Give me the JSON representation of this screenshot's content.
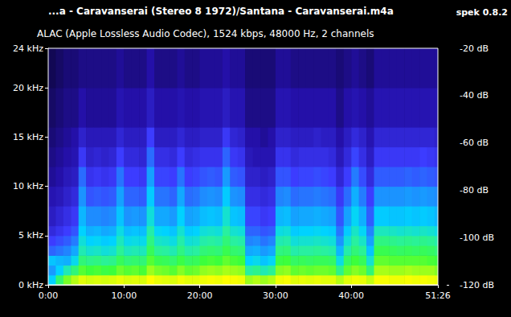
{
  "chart_data": {
    "type": "spectrogram",
    "title": "...a - Caravanserai (Stereo 8 1972)/Santana - Caravanserai.m4a",
    "annotation": "spek 0.8.2",
    "subtitle": "ALAC (Apple Lossless Audio Codec), 1524 kbps, 48000 Hz, 2 channels",
    "xlim": [
      0,
      3086
    ],
    "xticks": [
      {
        "value": 0,
        "label": "0:00"
      },
      {
        "value": 600,
        "label": "10:00"
      },
      {
        "value": 1200,
        "label": "20:00"
      },
      {
        "value": 1800,
        "label": "30:00"
      },
      {
        "value": 2400,
        "label": "40:00"
      },
      {
        "value": 3086,
        "label": "51:26"
      }
    ],
    "ylim": [
      0,
      24
    ],
    "yticks": [
      {
        "value": 0,
        "label": "0 kHz"
      },
      {
        "value": 5,
        "label": "5 kHz"
      },
      {
        "value": 10,
        "label": "10 kHz"
      },
      {
        "value": 15,
        "label": "15 kHz"
      },
      {
        "value": 20,
        "label": "20 kHz"
      },
      {
        "value": 24,
        "label": "24 kHz"
      }
    ],
    "time_bins": [
      0,
      60,
      120,
      180,
      240,
      300,
      360,
      420,
      480,
      540,
      600,
      660,
      720,
      780,
      840,
      900,
      960,
      1020,
      1080,
      1140,
      1200,
      1260,
      1320,
      1380,
      1440,
      1500,
      1560,
      1620,
      1680,
      1740,
      1800,
      1860,
      1920,
      1980,
      2040,
      2100,
      2160,
      2220,
      2280,
      2340,
      2400,
      2460,
      2520,
      2580,
      2640,
      2700,
      2760,
      2820,
      2880,
      2940,
      3000,
      3060,
      3086
    ],
    "freq_bins": [
      0,
      1,
      2,
      3,
      4,
      5,
      6,
      8,
      10,
      12,
      14,
      16,
      20,
      24
    ],
    "cells": [
      [
        -80,
        -88,
        -82,
        -95,
        -100,
        -104,
        -107,
        -109,
        -111,
        -112,
        -113,
        -114,
        -115
      ],
      [
        -65,
        -80,
        -84,
        -93,
        -98,
        -102,
        -105,
        -108,
        -110,
        -111,
        -112,
        -113,
        -114
      ],
      [
        -55,
        -72,
        -85,
        -91,
        -96,
        -100,
        -103,
        -106,
        -108,
        -110,
        -111,
        -112,
        -113
      ],
      [
        -50,
        -66,
        -78,
        -86,
        -92,
        -97,
        -101,
        -104,
        -107,
        -109,
        -110,
        -112,
        -113
      ],
      [
        -44,
        -58,
        -66,
        -72,
        -76,
        -80,
        -84,
        -89,
        -94,
        -101,
        -106,
        -110,
        -112
      ],
      [
        -46,
        -60,
        -68,
        -75,
        -80,
        -85,
        -90,
        -97,
        -102,
        -106,
        -108,
        -111,
        -112
      ],
      [
        -45,
        -59,
        -67,
        -74,
        -79,
        -84,
        -90,
        -96,
        -101,
        -105,
        -108,
        -111,
        -112
      ],
      [
        -46,
        -61,
        -69,
        -76,
        -81,
        -86,
        -91,
        -97,
        -102,
        -106,
        -108,
        -111,
        -112
      ],
      [
        -45,
        -60,
        -68,
        -75,
        -80,
        -85,
        -90,
        -96,
        -101,
        -105,
        -108,
        -111,
        -112
      ],
      [
        -43,
        -56,
        -63,
        -69,
        -73,
        -77,
        -82,
        -87,
        -93,
        -100,
        -105,
        -109,
        -111
      ],
      [
        -45,
        -58,
        -66,
        -73,
        -78,
        -83,
        -89,
        -95,
        -100,
        -104,
        -107,
        -110,
        -112
      ],
      [
        -44,
        -57,
        -65,
        -72,
        -77,
        -82,
        -88,
        -95,
        -100,
        -104,
        -107,
        -110,
        -112
      ],
      [
        -45,
        -59,
        -66,
        -73,
        -78,
        -83,
        -89,
        -96,
        -101,
        -105,
        -107,
        -110,
        -112
      ],
      [
        -40,
        -52,
        -58,
        -63,
        -67,
        -71,
        -76,
        -81,
        -87,
        -94,
        -100,
        -107,
        -110
      ],
      [
        -43,
        -55,
        -62,
        -69,
        -74,
        -79,
        -86,
        -93,
        -99,
        -103,
        -107,
        -110,
        -112
      ],
      [
        -44,
        -56,
        -63,
        -70,
        -75,
        -80,
        -86,
        -93,
        -99,
        -103,
        -107,
        -110,
        -112
      ],
      [
        -45,
        -58,
        -65,
        -72,
        -77,
        -82,
        -88,
        -95,
        -100,
        -104,
        -107,
        -110,
        -112
      ],
      [
        -42,
        -54,
        -61,
        -67,
        -71,
        -75,
        -80,
        -86,
        -93,
        -100,
        -105,
        -109,
        -111
      ],
      [
        -44,
        -57,
        -64,
        -71,
        -76,
        -81,
        -87,
        -94,
        -100,
        -104,
        -107,
        -110,
        -112
      ],
      [
        -44,
        -56,
        -63,
        -70,
        -75,
        -80,
        -86,
        -93,
        -99,
        -103,
        -107,
        -110,
        -112
      ],
      [
        -42,
        -53,
        -60,
        -66,
        -71,
        -76,
        -83,
        -90,
        -97,
        -102,
        -106,
        -109,
        -111
      ],
      [
        -41,
        -52,
        -59,
        -65,
        -70,
        -75,
        -82,
        -89,
        -96,
        -102,
        -106,
        -109,
        -111
      ],
      [
        -42,
        -53,
        -60,
        -66,
        -71,
        -76,
        -83,
        -90,
        -97,
        -102,
        -106,
        -109,
        -111
      ],
      [
        -40,
        -51,
        -57,
        -62,
        -66,
        -70,
        -75,
        -81,
        -88,
        -95,
        -101,
        -107,
        -110
      ],
      [
        -41,
        -52,
        -59,
        -65,
        -70,
        -75,
        -82,
        -89,
        -96,
        -101,
        -105,
        -109,
        -111
      ],
      [
        -42,
        -53,
        -60,
        -66,
        -71,
        -76,
        -83,
        -90,
        -97,
        -102,
        -106,
        -109,
        -111
      ],
      [
        -52,
        -70,
        -80,
        -86,
        -91,
        -95,
        -99,
        -103,
        -106,
        -108,
        -110,
        -112,
        -113
      ],
      [
        -50,
        -68,
        -78,
        -85,
        -90,
        -95,
        -99,
        -103,
        -106,
        -109,
        -110,
        -112,
        -113
      ],
      [
        -52,
        -72,
        -82,
        -88,
        -93,
        -97,
        -101,
        -104,
        -107,
        -109,
        -111,
        -112,
        -113
      ],
      [
        -50,
        -69,
        -79,
        -86,
        -91,
        -96,
        -100,
        -103,
        -106,
        -109,
        -110,
        -112,
        -113
      ],
      [
        -42,
        -54,
        -61,
        -67,
        -72,
        -77,
        -84,
        -91,
        -97,
        -102,
        -106,
        -109,
        -111
      ],
      [
        -41,
        -53,
        -60,
        -66,
        -71,
        -76,
        -83,
        -90,
        -97,
        -102,
        -106,
        -109,
        -111
      ],
      [
        -44,
        -57,
        -64,
        -71,
        -76,
        -81,
        -87,
        -94,
        -100,
        -104,
        -107,
        -110,
        -112
      ],
      [
        -43,
        -56,
        -63,
        -70,
        -75,
        -80,
        -86,
        -93,
        -99,
        -103,
        -107,
        -110,
        -112
      ],
      [
        -44,
        -57,
        -64,
        -70,
        -75,
        -80,
        -86,
        -93,
        -99,
        -103,
        -107,
        -110,
        -112
      ],
      [
        -43,
        -56,
        -63,
        -69,
        -74,
        -79,
        -85,
        -92,
        -98,
        -103,
        -106,
        -110,
        -112
      ],
      [
        -44,
        -56,
        -63,
        -70,
        -75,
        -80,
        -86,
        -93,
        -99,
        -103,
        -107,
        -110,
        -112
      ],
      [
        -44,
        -57,
        -64,
        -71,
        -76,
        -81,
        -87,
        -94,
        -100,
        -104,
        -107,
        -110,
        -112
      ],
      [
        -50,
        -68,
        -77,
        -84,
        -89,
        -93,
        -97,
        -101,
        -105,
        -108,
        -110,
        -112,
        -113
      ],
      [
        -44,
        -57,
        -64,
        -71,
        -76,
        -81,
        -87,
        -94,
        -100,
        -104,
        -107,
        -110,
        -112
      ],
      [
        -42,
        -54,
        -60,
        -66,
        -70,
        -74,
        -79,
        -85,
        -92,
        -99,
        -104,
        -109,
        -111
      ],
      [
        -43,
        -56,
        -63,
        -69,
        -74,
        -79,
        -85,
        -92,
        -98,
        -103,
        -106,
        -110,
        -112
      ],
      [
        -48,
        -66,
        -75,
        -82,
        -87,
        -91,
        -96,
        -100,
        -104,
        -107,
        -109,
        -111,
        -113
      ],
      [
        -41,
        -51,
        -57,
        -62,
        -67,
        -73,
        -81,
        -89,
        -96,
        -101,
        -105,
        -109,
        -111
      ],
      [
        -41,
        -51,
        -57,
        -62,
        -67,
        -73,
        -81,
        -89,
        -96,
        -101,
        -105,
        -109,
        -111
      ],
      [
        -42,
        -52,
        -58,
        -63,
        -68,
        -74,
        -82,
        -89,
        -96,
        -101,
        -105,
        -109,
        -111
      ],
      [
        -42,
        -52,
        -58,
        -64,
        -69,
        -75,
        -82,
        -89,
        -96,
        -101,
        -105,
        -109,
        -111
      ],
      [
        -41,
        -51,
        -58,
        -63,
        -68,
        -74,
        -81,
        -88,
        -95,
        -101,
        -105,
        -109,
        -111
      ],
      [
        -42,
        -52,
        -58,
        -64,
        -69,
        -75,
        -82,
        -89,
        -96,
        -101,
        -105,
        -109,
        -111
      ],
      [
        -41,
        -52,
        -58,
        -63,
        -68,
        -74,
        -81,
        -88,
        -95,
        -100,
        -105,
        -109,
        -111
      ],
      [
        -42,
        -52,
        -59,
        -64,
        -69,
        -75,
        -82,
        -89,
        -96,
        -101,
        -105,
        -109,
        -111
      ],
      [
        -43,
        -54,
        -60,
        -66,
        -71,
        -77,
        -84,
        -90,
        -97,
        -102,
        -106,
        -109,
        -111
      ]
    ],
    "colorbar": {
      "range": [
        -120,
        -20
      ],
      "ticks": [
        {
          "value": -20,
          "label": "-20 dB"
        },
        {
          "value": -40,
          "label": "-40 dB"
        },
        {
          "value": -60,
          "label": "-60 dB"
        },
        {
          "value": -80,
          "label": "-80 dB"
        },
        {
          "value": -100,
          "label": "-100 dB"
        },
        {
          "value": -120,
          "label": "-120 dB"
        }
      ]
    }
  }
}
